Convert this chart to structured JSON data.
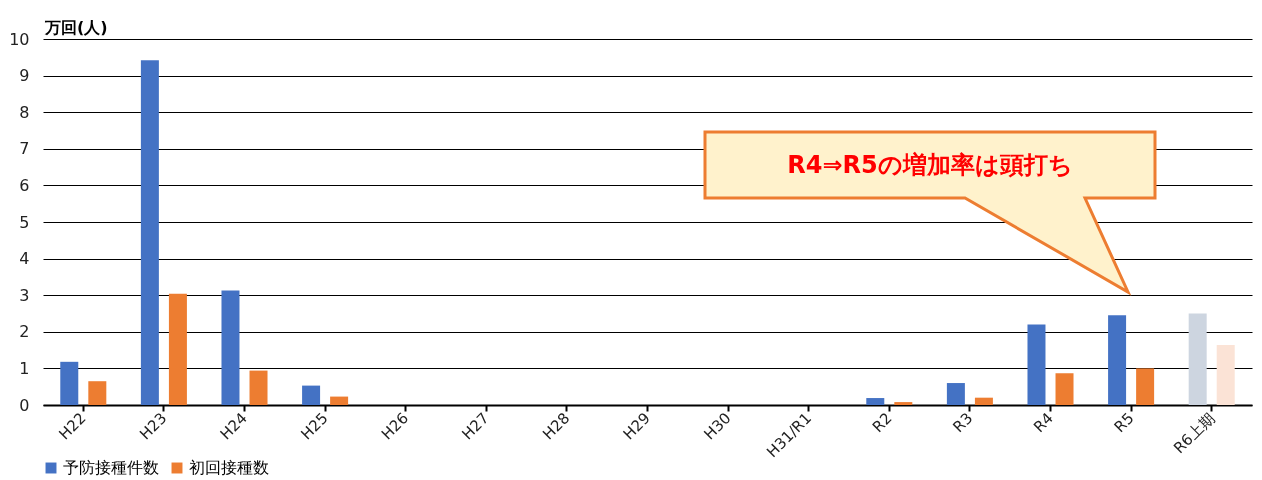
{
  "chart_data": {
    "type": "bar",
    "ylabel": "万回(人)",
    "categories": [
      "H22",
      "H23",
      "H24",
      "H25",
      "H26",
      "H27",
      "H28",
      "H29",
      "H30",
      "H31/R1",
      "R2",
      "R3",
      "R4",
      "R5",
      "R6上期"
    ],
    "series": [
      {
        "name": "予防接種件数",
        "color": "#4472c4",
        "colors": [
          "#4472c4",
          "#4472c4",
          "#4472c4",
          "#4472c4",
          "#4472c4",
          "#4472c4",
          "#4472c4",
          "#4472c4",
          "#4472c4",
          "#4472c4",
          "#4472c4",
          "#4472c4",
          "#4472c4",
          "#4472c4",
          "#cdd5e0"
        ],
        "values": [
          1.18,
          9.42,
          3.13,
          0.53,
          null,
          null,
          null,
          null,
          null,
          null,
          0.19,
          0.6,
          2.2,
          2.45,
          2.5
        ]
      },
      {
        "name": "初回接種数",
        "color": "#ed7d31",
        "colors": [
          "#ed7d31",
          "#ed7d31",
          "#ed7d31",
          "#ed7d31",
          "#ed7d31",
          "#ed7d31",
          "#ed7d31",
          "#ed7d31",
          "#ed7d31",
          "#ed7d31",
          "#ed7d31",
          "#ed7d31",
          "#ed7d31",
          "#ed7d31",
          "#fbe3d6"
        ],
        "values": [
          0.65,
          3.04,
          0.94,
          0.23,
          null,
          null,
          null,
          null,
          null,
          null,
          0.08,
          0.2,
          0.87,
          1.0,
          1.64
        ]
      }
    ],
    "ylim": [
      0,
      10
    ],
    "yticks": [
      0,
      1,
      2,
      3,
      4,
      5,
      6,
      7,
      8,
      9,
      10
    ],
    "grid": "y",
    "legend": "bottom",
    "annotations": [
      "R4⇒R5の増加率は頭打ち"
    ]
  }
}
